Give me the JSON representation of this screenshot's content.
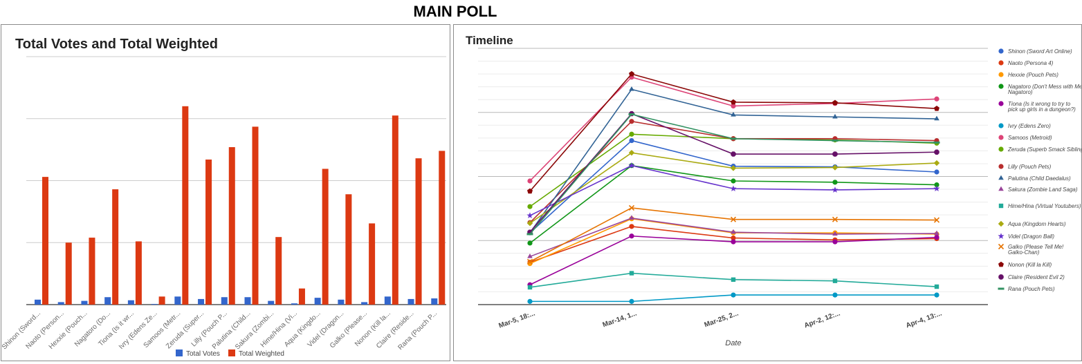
{
  "page_title": "MAIN POLL",
  "chart_data": [
    {
      "type": "bar",
      "title": "Total Votes and Total Weighted",
      "xlabel": "",
      "ylabel": "",
      "grid": true,
      "legend_position": "bottom",
      "categories": [
        "Shinon (Sword...",
        "Naoto (Person...",
        "Hexxie (Pouch...",
        "Nagatoro (Do...",
        "Tiona (Is it wr...",
        "Ivry (Edens Ze...",
        "Samoos (Metr...",
        "Zeruda (Super...",
        "Lilly (Pouch P...",
        "Palutina (Child...",
        "Sakura (Zombi...",
        "Hime/Hina (Vi...",
        "Aqua (Kingdo...",
        "Videl (Dragon...",
        "Galko (Please...",
        "Nonon (Kill la...",
        "Claire (Reside...",
        "Rana (Pouch P..."
      ],
      "ylim": [
        0,
        400
      ],
      "series": [
        {
          "name": "Total Votes",
          "color": "#3366cc",
          "values": [
            8,
            4,
            6,
            12,
            7,
            1,
            13,
            9,
            12,
            12,
            6,
            2,
            11,
            8,
            4,
            13,
            9,
            10
          ]
        },
        {
          "name": "Total Weighted",
          "color": "#dc3912",
          "values": [
            206,
            100,
            108,
            186,
            102,
            13,
            320,
            234,
            254,
            287,
            109,
            26,
            219,
            178,
            131,
            305,
            236,
            248
          ]
        }
      ]
    },
    {
      "type": "line",
      "title": "Timeline",
      "xlabel": "Date",
      "ylabel": "",
      "grid": true,
      "legend_position": "right",
      "x": [
        "Mar-5, 18:...",
        "Mar-14, 1...",
        "Mar-25, 2...",
        "Apr-2, 12:...",
        "Apr-4, 13:..."
      ],
      "ylim": [
        0,
        400
      ],
      "series": [
        {
          "name": "Shinon (Sword Art Online)",
          "color": "#3366cc",
          "marker": "circle",
          "values": [
            112,
            256,
            216,
            215,
            207
          ]
        },
        {
          "name": "Naoto (Persona 4)",
          "color": "#dc3912",
          "marker": "circle",
          "values": [
            66,
            122,
            104,
            101,
            103
          ]
        },
        {
          "name": "Hexxie (Pouch Pets)",
          "color": "#ff9900",
          "marker": "circle",
          "values": [
            64,
            134,
            112,
            112,
            110
          ]
        },
        {
          "name": "Nagatoro (Don't Mess with Me, Nagatoro)",
          "color": "#109618",
          "marker": "circle",
          "values": [
            96,
            217,
            193,
            191,
            187
          ]
        },
        {
          "name": "Tiona (Is it wrong to try to pick up girls in a dungeon?)",
          "color": "#990099",
          "marker": "circle",
          "values": [
            31,
            107,
            98,
            98,
            105
          ]
        },
        {
          "name": "Ivry (Edens Zero)",
          "color": "#0099c6",
          "marker": "circle",
          "values": [
            5,
            5,
            15,
            15,
            15
          ]
        },
        {
          "name": "Samoos (Metroid)",
          "color": "#dd4477",
          "marker": "circle",
          "values": [
            193,
            355,
            310,
            314,
            321
          ]
        },
        {
          "name": "Zeruda (Superb Smack Siblings)",
          "color": "#66aa00",
          "marker": "circle",
          "values": [
            153,
            266,
            259,
            257,
            252
          ]
        },
        {
          "name": "Lilly (Pouch Pets)",
          "color": "#b82e2e",
          "marker": "circle",
          "values": [
            128,
            286,
            259,
            259,
            256
          ]
        },
        {
          "name": "Palutina (Child Daedalus)",
          "color": "#316395",
          "marker": "triangle",
          "values": [
            112,
            336,
            296,
            293,
            290
          ]
        },
        {
          "name": "Sakura (Zombie Land Saga)",
          "color": "#994499",
          "marker": "triangle",
          "values": [
            75,
            135,
            113,
            110,
            111
          ]
        },
        {
          "name": "Hime/Hina (Virtual Youtubers)",
          "color": "#22aa99",
          "marker": "square",
          "values": [
            27,
            49,
            39,
            37,
            28
          ]
        },
        {
          "name": "Aqua (Kingdom Hearts)",
          "color": "#aaaa11",
          "marker": "diamond",
          "values": [
            127,
            237,
            213,
            214,
            221
          ]
        },
        {
          "name": "Videl (Dragon Ball)",
          "color": "#6633cc",
          "marker": "star",
          "values": [
            139,
            217,
            181,
            179,
            181
          ]
        },
        {
          "name": "Galko (Please Tell Me! Galko-Chan)",
          "color": "#e67300",
          "marker": "x",
          "values": [
            67,
            151,
            133,
            133,
            132
          ]
        },
        {
          "name": "Nonon (Kill la Kill)",
          "color": "#8b0707",
          "marker": "pentagon",
          "values": [
            177,
            360,
            316,
            315,
            306
          ]
        },
        {
          "name": "Claire (Resident Evil 2)",
          "color": "#651067",
          "marker": "octagon",
          "values": [
            113,
            298,
            235,
            235,
            238
          ]
        },
        {
          "name": "Rana (Pouch Pets)",
          "color": "#329262",
          "marker": "dash",
          "values": [
            110,
            297,
            259,
            256,
            253
          ]
        }
      ]
    }
  ]
}
